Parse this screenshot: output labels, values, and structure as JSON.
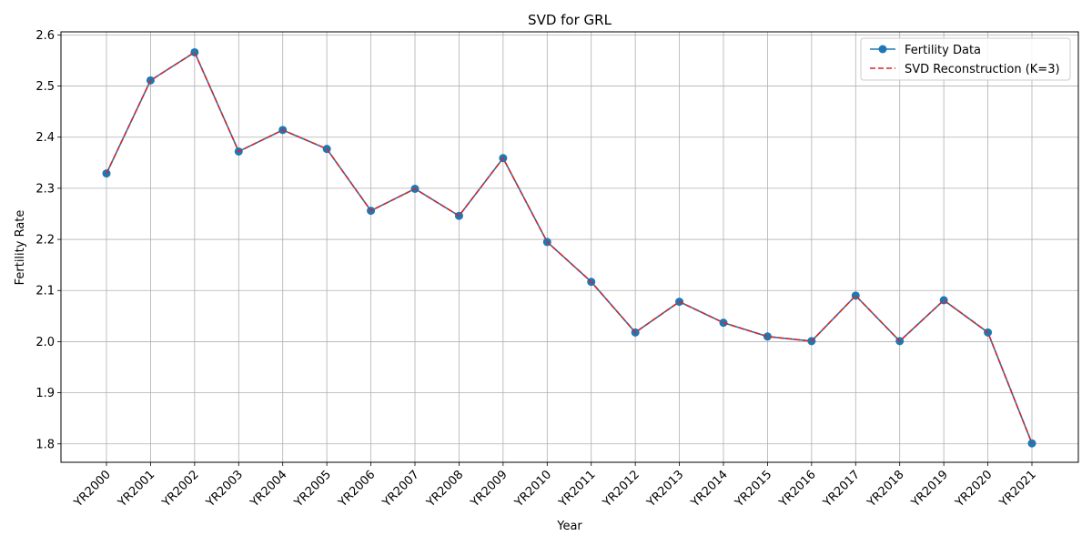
{
  "chart_data": {
    "type": "line",
    "title": "SVD for GRL",
    "xlabel": "Year",
    "ylabel": "Fertility Rate",
    "categories": [
      "YR2000",
      "YR2001",
      "YR2002",
      "YR2003",
      "YR2004",
      "YR2005",
      "YR2006",
      "YR2007",
      "YR2008",
      "YR2009",
      "YR2010",
      "YR2011",
      "YR2012",
      "YR2013",
      "YR2014",
      "YR2015",
      "YR2016",
      "YR2017",
      "YR2018",
      "YR2019",
      "YR2020",
      "YR2021"
    ],
    "ylim": [
      1.764,
      2.606
    ],
    "yticks": [
      "1.8",
      "1.9",
      "2.0",
      "2.1",
      "2.2",
      "2.3",
      "2.4",
      "2.5",
      "2.6"
    ],
    "grid": true,
    "legend_position": "top-right",
    "series": [
      {
        "name": "Fertility Data",
        "style": "solid-with-markers",
        "color": "#1f77b4",
        "values": [
          2.329,
          2.511,
          2.566,
          2.372,
          2.414,
          2.377,
          2.256,
          2.299,
          2.246,
          2.359,
          2.195,
          2.117,
          2.018,
          2.078,
          2.037,
          2.01,
          2.001,
          2.09,
          2.001,
          2.081,
          2.018,
          1.801
        ]
      },
      {
        "name": "SVD Reconstruction (K=3)",
        "style": "dashed",
        "color": "#d62728",
        "values": [
          2.329,
          2.511,
          2.566,
          2.372,
          2.414,
          2.377,
          2.256,
          2.299,
          2.246,
          2.359,
          2.195,
          2.117,
          2.018,
          2.078,
          2.037,
          2.01,
          2.001,
          2.09,
          2.001,
          2.081,
          2.018,
          1.801
        ]
      }
    ]
  }
}
